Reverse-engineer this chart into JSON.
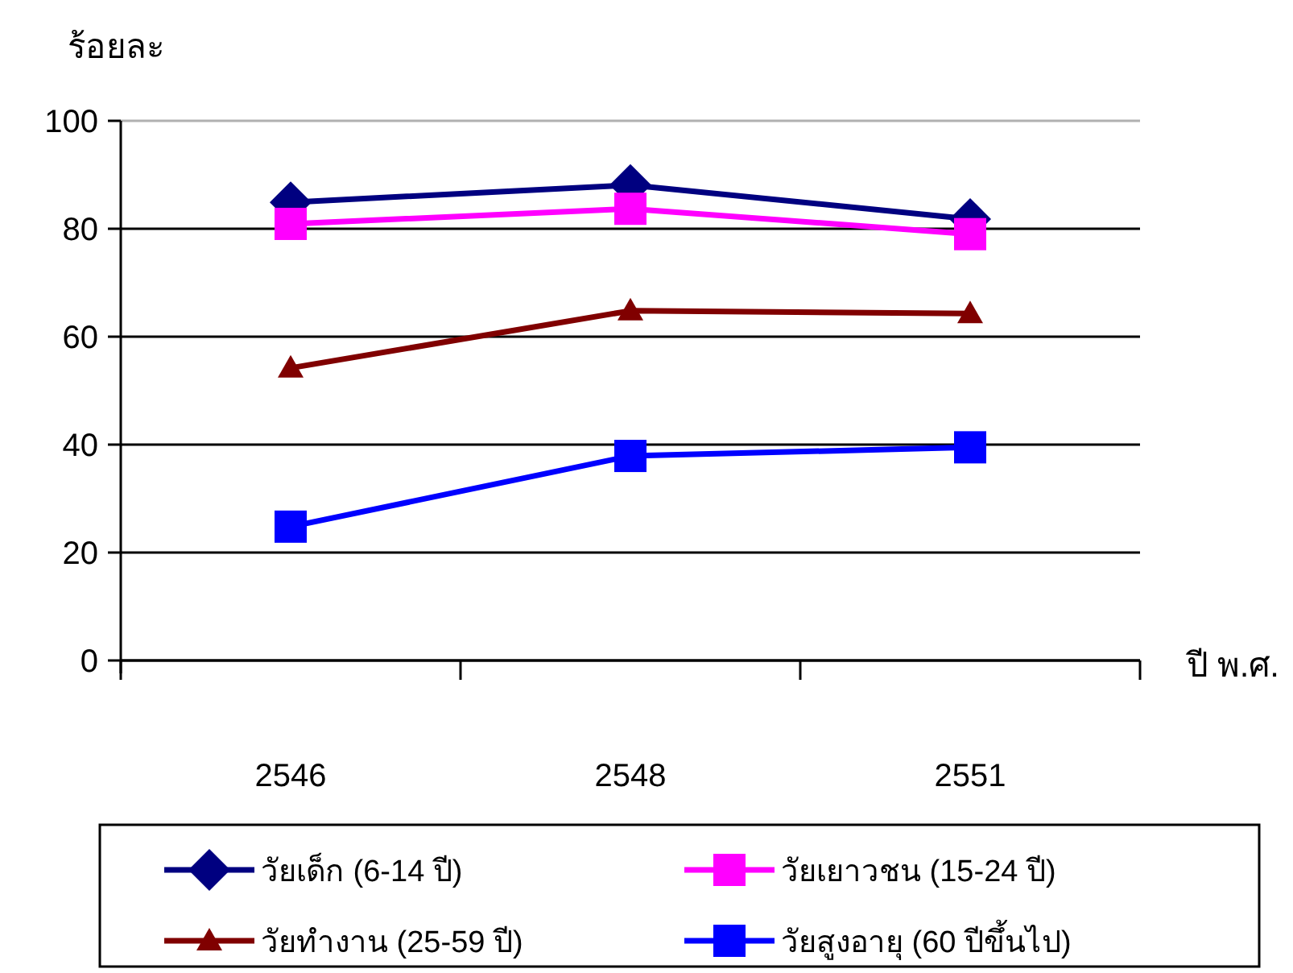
{
  "chart_data": {
    "type": "line",
    "ylabel": "ร้อยละ",
    "xlabel": "ปี พ.ศ.",
    "categories": [
      "2546",
      "2548",
      "2551"
    ],
    "series": [
      {
        "name": "วัยเด็ก (6-14 ปี)",
        "color": "#000080",
        "marker": "diamond",
        "values": [
          84.9,
          88.1,
          81.8
        ]
      },
      {
        "name": "วัยเยาวชน (15-24 ปี)",
        "color": "#ff00ff",
        "marker": "square",
        "values": [
          80.9,
          83.7,
          79.0
        ]
      },
      {
        "name": "วัยทำงาน (25-59 ปี)",
        "color": "#800000",
        "marker": "triangle",
        "values": [
          54.2,
          64.8,
          64.3
        ]
      },
      {
        "name": "วัยสูงอายุ (60 ปีขึ้นไป)",
        "color": "#0000ff",
        "marker": "square",
        "values": [
          24.8,
          37.9,
          39.5
        ]
      }
    ],
    "ylim": [
      0,
      100
    ],
    "yticks": [
      0,
      20,
      40,
      60,
      80,
      100
    ],
    "grid": "y",
    "legend": "bottom",
    "line_style": "solid"
  }
}
